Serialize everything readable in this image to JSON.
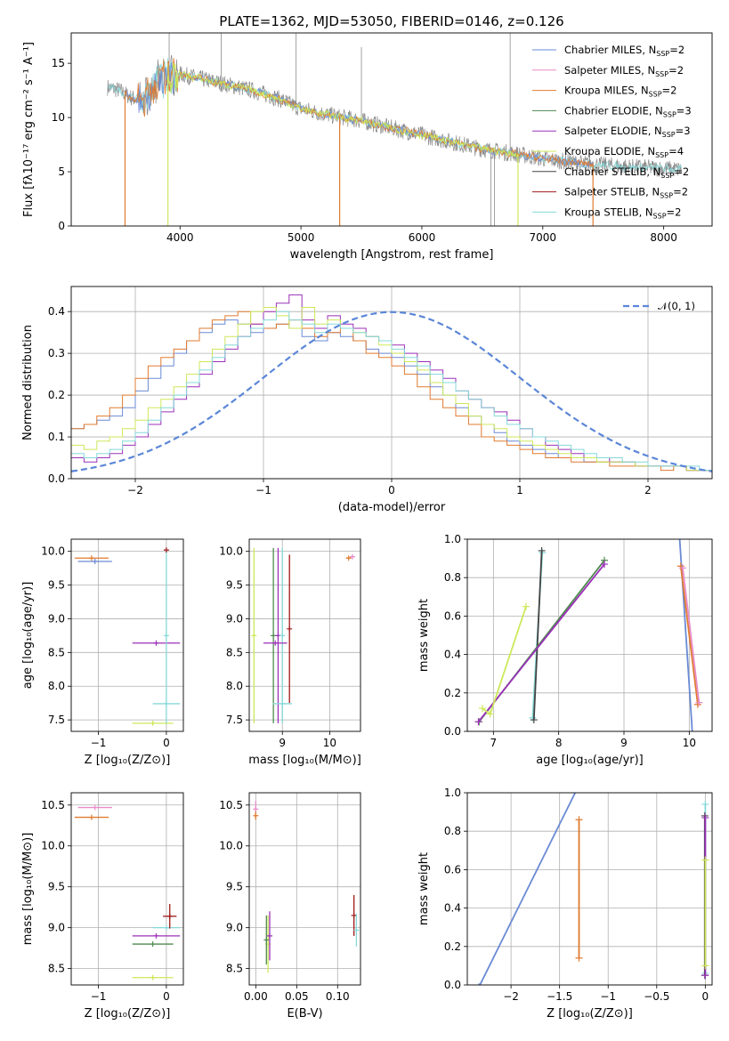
{
  "title": "PLATE=1362, MJD=53050, FIBERID=0146, z=0.126",
  "colors": {
    "Chabrier MILES": "#6a8ad4",
    "Salpeter MILES": "#e88cc8",
    "Kroupa MILES": "#e07b30",
    "Chabrier ELODIE": "#4f8a4f",
    "Salpeter ELODIE": "#9b30b8",
    "Kroupa ELODIE": "#cde85a",
    "Chabrier STELIB": "#444444",
    "Salpeter STELIB": "#a01818",
    "Kroupa STELIB": "#86d8d8",
    "data": "#8a8a8a",
    "gauss": "#5b86d8"
  },
  "chart_data": [
    {
      "id": "spectrum",
      "type": "line",
      "title": "PLATE=1362, MJD=53050, FIBERID=0146, z=0.126",
      "xlabel": "wavelength [Angstrom, rest frame]",
      "ylabel": "Flux [fλ10⁻¹⁷ erg cm⁻² s⁻¹ A⁻¹]",
      "xlim": [
        3100,
        8400
      ],
      "ylim": [
        0,
        17.8
      ],
      "xticks": [
        4000,
        5000,
        6000,
        7000,
        8000
      ],
      "yticks": [
        0,
        5,
        10,
        15
      ],
      "grid": false,
      "legend_position": "top-right",
      "legend": [
        {
          "label": "Chabrier MILES, N",
          "sub": "SSP",
          "suffix": "=2",
          "color_key": "Chabrier MILES"
        },
        {
          "label": "Salpeter MILES, N",
          "sub": "SSP",
          "suffix": "=2",
          "color_key": "Salpeter MILES"
        },
        {
          "label": "Kroupa MILES, N",
          "sub": "SSP",
          "suffix": "=2",
          "color_key": "Kroupa MILES"
        },
        {
          "label": "Chabrier ELODIE, N",
          "sub": "SSP",
          "suffix": "=3",
          "color_key": "Chabrier ELODIE"
        },
        {
          "label": "Salpeter ELODIE, N",
          "sub": "SSP",
          "suffix": "=3",
          "color_key": "Salpeter ELODIE"
        },
        {
          "label": "Kroupa ELODIE, N",
          "sub": "SSP",
          "suffix": "=4",
          "color_key": "Kroupa ELODIE"
        },
        {
          "label": "Chabrier STELIB, N",
          "sub": "SSP",
          "suffix": "=2",
          "color_key": "Chabrier STELIB"
        },
        {
          "label": "Salpeter STELIB, N",
          "sub": "SSP",
          "suffix": "=2",
          "color_key": "Salpeter STELIB"
        },
        {
          "label": "Kroupa STELIB, N",
          "sub": "SSP",
          "suffix": "=2",
          "color_key": "Kroupa STELIB"
        }
      ],
      "continuum": {
        "x": [
          3400,
          3500,
          3600,
          3700,
          3800,
          3900,
          4000,
          4200,
          4400,
          4600,
          4800,
          5000,
          5200,
          5500,
          5800,
          6000,
          6300,
          6500,
          6800,
          7000,
          7300,
          7500,
          7800,
          8000,
          8150
        ],
        "y": [
          12.8,
          12.5,
          11.8,
          11.6,
          13.2,
          13.8,
          14.0,
          13.5,
          13.0,
          12.5,
          11.8,
          10.8,
          10.3,
          9.7,
          8.9,
          8.4,
          7.6,
          7.1,
          6.6,
          6.2,
          5.8,
          5.6,
          5.4,
          5.3,
          5.2
        ]
      },
      "model_extent": {
        "MILES": [
          3540,
          7420
        ],
        "ELODIE": [
          3900,
          6800
        ],
        "STELIB": [
          3400,
          8150
        ]
      }
    },
    {
      "id": "residuals",
      "type": "line",
      "xlabel": "(data-model)/error",
      "ylabel": "Normed distribution",
      "xlim": [
        -2.5,
        2.5
      ],
      "ylim": [
        0,
        0.46
      ],
      "xticks": [
        -2,
        -1,
        0,
        1,
        2
      ],
      "yticks": [
        0.0,
        0.1,
        0.2,
        0.3,
        0.4
      ],
      "grid": true,
      "legend_position": "top-right",
      "legend": [
        {
          "label": "𝒩(0, 1)",
          "color_key": "gauss"
        }
      ],
      "bin_edges_start": -2.5,
      "bin_width": 0.1,
      "series": [
        {
          "name": "Chabrier MILES",
          "color_key": "Chabrier MILES",
          "values": [
            0.12,
            0.13,
            0.14,
            0.15,
            0.17,
            0.21,
            0.24,
            0.27,
            0.3,
            0.33,
            0.35,
            0.37,
            0.38,
            0.37,
            0.35,
            0.36,
            0.37,
            0.36,
            0.34,
            0.33,
            0.35,
            0.34,
            0.33,
            0.31,
            0.3,
            0.29,
            0.27,
            0.25,
            0.22,
            0.2,
            0.17,
            0.15,
            0.13,
            0.11,
            0.09,
            0.08,
            0.07,
            0.06,
            0.05,
            0.05,
            0.04,
            0.04,
            0.04,
            0.04,
            0.03,
            0.03,
            0.03,
            0.03,
            0.02,
            0.02
          ]
        },
        {
          "name": "Kroupa MILES",
          "color_key": "Kroupa MILES",
          "values": [
            0.12,
            0.13,
            0.15,
            0.17,
            0.2,
            0.24,
            0.27,
            0.29,
            0.31,
            0.33,
            0.36,
            0.38,
            0.39,
            0.4,
            0.37,
            0.36,
            0.37,
            0.38,
            0.36,
            0.34,
            0.35,
            0.36,
            0.33,
            0.3,
            0.29,
            0.27,
            0.25,
            0.22,
            0.19,
            0.17,
            0.15,
            0.13,
            0.1,
            0.09,
            0.08,
            0.07,
            0.06,
            0.05,
            0.05,
            0.04,
            0.04,
            0.04,
            0.03,
            0.03,
            0.03,
            0.03,
            0.02,
            0.03,
            0.02,
            0.02
          ]
        },
        {
          "name": "Salpeter ELODIE",
          "color_key": "Salpeter ELODIE",
          "values": [
            0.05,
            0.04,
            0.05,
            0.06,
            0.08,
            0.1,
            0.13,
            0.16,
            0.19,
            0.22,
            0.25,
            0.28,
            0.31,
            0.34,
            0.37,
            0.4,
            0.42,
            0.44,
            0.38,
            0.36,
            0.39,
            0.37,
            0.36,
            0.34,
            0.33,
            0.32,
            0.3,
            0.28,
            0.26,
            0.24,
            0.21,
            0.19,
            0.17,
            0.16,
            0.14,
            0.12,
            0.1,
            0.08,
            0.07,
            0.06,
            0.05,
            0.05,
            0.04,
            0.04,
            0.03,
            0.03,
            0.03,
            0.03,
            0.02,
            0.02
          ]
        },
        {
          "name": "Kroupa ELODIE",
          "color_key": "Kroupa ELODIE",
          "values": [
            0.08,
            0.07,
            0.09,
            0.1,
            0.12,
            0.14,
            0.17,
            0.19,
            0.22,
            0.25,
            0.28,
            0.31,
            0.34,
            0.37,
            0.4,
            0.41,
            0.39,
            0.36,
            0.41,
            0.37,
            0.38,
            0.36,
            0.35,
            0.34,
            0.32,
            0.3,
            0.28,
            0.26,
            0.23,
            0.2,
            0.18,
            0.15,
            0.13,
            0.12,
            0.1,
            0.09,
            0.08,
            0.07,
            0.06,
            0.05,
            0.05,
            0.04,
            0.04,
            0.04,
            0.03,
            0.03,
            0.03,
            0.03,
            0.02,
            0.02
          ]
        },
        {
          "name": "Kroupa STELIB",
          "color_key": "Kroupa STELIB",
          "values": [
            0.06,
            0.05,
            0.06,
            0.07,
            0.09,
            0.11,
            0.14,
            0.17,
            0.2,
            0.23,
            0.26,
            0.29,
            0.32,
            0.34,
            0.36,
            0.38,
            0.4,
            0.38,
            0.37,
            0.35,
            0.37,
            0.36,
            0.35,
            0.34,
            0.33,
            0.31,
            0.29,
            0.27,
            0.25,
            0.23,
            0.21,
            0.19,
            0.17,
            0.15,
            0.13,
            0.12,
            0.1,
            0.09,
            0.08,
            0.07,
            0.06,
            0.05,
            0.05,
            0.04,
            0.04,
            0.03,
            0.03,
            0.03,
            0.03,
            0.02
          ]
        }
      ],
      "gaussian": {
        "mean": 0,
        "sigma": 1
      }
    },
    {
      "id": "age-vs-Z",
      "type": "scatter",
      "xlabel": "Z [log₁₀(Z/Z⊙)]",
      "ylabel": "age  [log₁₀(age/yr)]",
      "xlim": [
        -1.4,
        0.25
      ],
      "ylim": [
        7.33,
        10.18
      ],
      "xticks": [
        -1,
        0
      ],
      "yticks": [
        7.5,
        8.0,
        8.5,
        9.0,
        9.5,
        10.0
      ],
      "grid": true,
      "points": [
        {
          "x": -1.1,
          "y": 9.9,
          "xerr": 0.25,
          "color_key": "Kroupa MILES"
        },
        {
          "x": -1.05,
          "y": 9.85,
          "xerr": 0.25,
          "color_key": "Chabrier MILES"
        },
        {
          "x": -0.15,
          "y": 8.64,
          "xerr": 0.35,
          "color_key": "Salpeter ELODIE"
        },
        {
          "x": -0.2,
          "y": 7.45,
          "xerr": 0.3,
          "color_key": "Kroupa ELODIE"
        },
        {
          "x": 0.0,
          "y": 7.74,
          "xerr": 0.2,
          "color_key": "Kroupa STELIB"
        },
        {
          "x": 0.0,
          "y": 8.75,
          "yerr": 1.3,
          "color_key": "Kroupa STELIB"
        },
        {
          "x": 0.0,
          "y": 10.02,
          "color_key": "Salpeter STELIB"
        }
      ]
    },
    {
      "id": "age-vs-mass",
      "type": "scatter",
      "xlabel": "mass [log₁₀(M/M⊙)]",
      "ylabel": "",
      "xlim": [
        8.3,
        10.65
      ],
      "ylim": [
        7.33,
        10.18
      ],
      "xticks": [
        9,
        10
      ],
      "yticks": [
        7.5,
        8.0,
        8.5,
        9.0,
        9.5,
        10.0
      ],
      "grid": true,
      "points": [
        {
          "x": 8.81,
          "y": 8.75,
          "yerr": 1.3,
          "color_key": "Chabrier ELODIE"
        },
        {
          "x": 8.4,
          "y": 8.75,
          "yerr": 1.3,
          "color_key": "Kroupa ELODIE"
        },
        {
          "x": 8.91,
          "y": 8.75,
          "yerr": 1.3,
          "color_key": "Salpeter ELODIE"
        },
        {
          "x": 9.0,
          "y": 8.75,
          "yerr": 1.3,
          "color_key": "Kroupa STELIB"
        },
        {
          "x": 9.15,
          "y": 8.85,
          "yerr": 1.1,
          "color_key": "Salpeter STELIB"
        },
        {
          "x": 8.85,
          "y": 8.64,
          "xerr": 0.25,
          "color_key": "Salpeter ELODIE"
        },
        {
          "x": 9.0,
          "y": 7.74,
          "xerr": 0.2,
          "color_key": "Kroupa STELIB"
        },
        {
          "x": 10.4,
          "y": 9.9,
          "xerr": 0.05,
          "color_key": "Kroupa MILES"
        },
        {
          "x": 10.48,
          "y": 9.92,
          "xerr": 0.05,
          "color_key": "Salpeter MILES"
        }
      ]
    },
    {
      "id": "weight-vs-age",
      "type": "line",
      "xlabel": "age  [log₁₀(age/yr)]",
      "ylabel": "mass weight",
      "xlim": [
        6.6,
        10.35
      ],
      "ylim": [
        0,
        1.0
      ],
      "xticks": [
        7,
        8,
        9,
        10
      ],
      "yticks": [
        0.0,
        0.2,
        0.4,
        0.6,
        0.8,
        1.0
      ],
      "grid": true,
      "series": [
        {
          "name": "Chabrier MILES",
          "color_key": "Chabrier MILES",
          "x": [
            9.85,
            10.05
          ],
          "y": [
            1.02,
            -0.02
          ]
        },
        {
          "name": "Kroupa MILES",
          "color_key": "Kroupa MILES",
          "x": [
            9.87,
            10.13
          ],
          "y": [
            0.86,
            0.14
          ]
        },
        {
          "name": "Salpeter MILES",
          "color_key": "Salpeter MILES",
          "x": [
            9.9,
            10.15
          ],
          "y": [
            0.85,
            0.15
          ]
        },
        {
          "name": "Kroupa STELIB",
          "color_key": "Kroupa STELIB",
          "x": [
            7.6,
            7.75
          ],
          "y": [
            0.07,
            0.93
          ]
        },
        {
          "name": "Chabrier STELIB",
          "color_key": "Chabrier STELIB",
          "x": [
            7.62,
            7.74
          ],
          "y": [
            0.06,
            0.94
          ]
        },
        {
          "name": "Chabrier ELODIE",
          "color_key": "Chabrier ELODIE",
          "x": [
            6.78,
            8.7
          ],
          "y": [
            0.05,
            0.89
          ]
        },
        {
          "name": "Salpeter ELODIE",
          "color_key": "Salpeter ELODIE",
          "x": [
            6.77,
            8.7
          ],
          "y": [
            0.05,
            0.87
          ]
        },
        {
          "name": "Kroupa ELODIE",
          "color_key": "Kroupa ELODIE",
          "x": [
            6.83,
            6.95,
            7.5
          ],
          "y": [
            0.12,
            0.09,
            0.65
          ]
        }
      ]
    },
    {
      "id": "mass-vs-Z",
      "type": "scatter",
      "xlabel": "Z [log₁₀(Z/Z⊙)]",
      "ylabel": "mass [log₁₀(M/M⊙)]",
      "xlim": [
        -1.4,
        0.25
      ],
      "ylim": [
        8.3,
        10.65
      ],
      "xticks": [
        -1,
        0
      ],
      "yticks": [
        8.5,
        9.0,
        9.5,
        10.0,
        10.5
      ],
      "grid": true,
      "points": [
        {
          "x": -1.05,
          "y": 10.47,
          "xerr": 0.25,
          "color_key": "Salpeter MILES"
        },
        {
          "x": -1.1,
          "y": 10.35,
          "xerr": 0.25,
          "color_key": "Kroupa MILES"
        },
        {
          "x": -0.15,
          "y": 8.9,
          "xerr": 0.35,
          "color_key": "Salpeter ELODIE"
        },
        {
          "x": -0.2,
          "y": 8.8,
          "xerr": 0.3,
          "color_key": "Chabrier ELODIE"
        },
        {
          "x": -0.2,
          "y": 8.39,
          "xerr": 0.3,
          "color_key": "Kroupa ELODIE"
        },
        {
          "x": 0.0,
          "y": 9.0,
          "xerr": 0.2,
          "color_key": "Kroupa STELIB"
        },
        {
          "x": 0.05,
          "y": 9.14,
          "xerr": 0.1,
          "yerr": 0.15,
          "color_key": "Salpeter STELIB"
        }
      ]
    },
    {
      "id": "mass-vs-EBV",
      "type": "scatter",
      "xlabel": "E(B-V)",
      "ylabel": "",
      "xlim": [
        -0.008,
        0.128
      ],
      "ylim": [
        8.3,
        10.65
      ],
      "xticks": [
        0.0,
        0.05,
        0.1
      ],
      "xticklabels": [
        "0.00",
        "0.05",
        "0.10"
      ],
      "yticks": [
        8.5,
        9.0,
        9.5,
        10.0,
        10.5
      ],
      "grid": true,
      "points": [
        {
          "x": 0.0,
          "y": 10.45,
          "yerr": 0.1,
          "color_key": "Salpeter MILES"
        },
        {
          "x": 0.0,
          "y": 10.37,
          "yerr": 0.05,
          "color_key": "Kroupa MILES"
        },
        {
          "x": 0.015,
          "y": 8.8,
          "yerr": 0.35,
          "color_key": "Kroupa ELODIE"
        },
        {
          "x": 0.017,
          "y": 8.9,
          "yerr": 0.3,
          "color_key": "Salpeter ELODIE"
        },
        {
          "x": 0.013,
          "y": 8.85,
          "yerr": 0.3,
          "color_key": "Chabrier ELODIE"
        },
        {
          "x": 0.12,
          "y": 9.15,
          "yerr": 0.25,
          "color_key": "Salpeter STELIB"
        },
        {
          "x": 0.123,
          "y": 8.97,
          "yerr": 0.2,
          "color_key": "Kroupa STELIB"
        }
      ]
    },
    {
      "id": "weight-vs-Z",
      "type": "line",
      "xlabel": "Z [log₁₀(Z/Z⊙)]",
      "ylabel": "mass weight",
      "xlim": [
        -2.45,
        0.07
      ],
      "ylim": [
        0,
        1.0
      ],
      "xticks": [
        -2.0,
        -1.5,
        -1.0,
        -0.5,
        0.0
      ],
      "yticks": [
        0.0,
        0.2,
        0.4,
        0.6,
        0.8,
        1.0
      ],
      "grid": true,
      "series": [
        {
          "name": "Chabrier MILES",
          "color_key": "Chabrier MILES",
          "x": [
            -2.33,
            -1.32
          ],
          "y": [
            -0.01,
            1.02
          ]
        },
        {
          "name": "Kroupa MILES",
          "color_key": "Kroupa MILES",
          "x": [
            -1.3,
            -1.3
          ],
          "y": [
            0.14,
            0.86
          ]
        },
        {
          "name": "Kroupa STELIB",
          "color_key": "Kroupa STELIB",
          "x": [
            0.0,
            0.0
          ],
          "y": [
            0.06,
            0.94
          ]
        },
        {
          "name": "Chabrier STELIB",
          "color_key": "Chabrier STELIB",
          "x": [
            -0.005,
            -0.005
          ],
          "y": [
            0.05,
            0.88
          ]
        },
        {
          "name": "Salpeter ELODIE",
          "color_key": "Salpeter ELODIE",
          "x": [
            0.0,
            0.0
          ],
          "y": [
            0.05,
            0.87
          ]
        },
        {
          "name": "Kroupa ELODIE",
          "color_key": "Kroupa ELODIE",
          "x": [
            0.0,
            0.0
          ],
          "y": [
            0.1,
            0.65
          ]
        }
      ]
    }
  ]
}
